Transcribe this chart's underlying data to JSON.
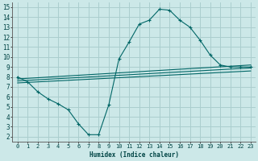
{
  "xlabel": "Humidex (Indice chaleur)",
  "bg_color": "#cce8e8",
  "line_color": "#006666",
  "grid_color": "#aacece",
  "xlim": [
    -0.5,
    23.5
  ],
  "ylim": [
    1.5,
    15.5
  ],
  "yticks": [
    2,
    3,
    4,
    5,
    6,
    7,
    8,
    9,
    10,
    11,
    12,
    13,
    14,
    15
  ],
  "xticks": [
    0,
    1,
    2,
    3,
    4,
    5,
    6,
    7,
    8,
    9,
    10,
    11,
    12,
    13,
    14,
    15,
    16,
    17,
    18,
    19,
    20,
    21,
    22,
    23
  ],
  "curve1_x": [
    0,
    1,
    2,
    3,
    4,
    5,
    6,
    7,
    8,
    9,
    10,
    11,
    12,
    13,
    14,
    15,
    16,
    17,
    18,
    19,
    20,
    21,
    22,
    23
  ],
  "curve1_y": [
    8.0,
    7.5,
    6.5,
    5.8,
    5.3,
    4.7,
    3.3,
    2.2,
    2.2,
    5.2,
    9.8,
    11.5,
    13.3,
    13.7,
    14.8,
    14.7,
    13.7,
    13.0,
    11.7,
    10.2,
    9.2,
    9.0,
    9.0,
    9.0
  ],
  "line2_x": [
    0,
    23
  ],
  "line2_y": [
    7.8,
    9.2
  ],
  "line3_x": [
    0,
    23
  ],
  "line3_y": [
    7.6,
    8.9
  ],
  "line4_x": [
    0,
    23
  ],
  "line4_y": [
    7.4,
    8.6
  ]
}
